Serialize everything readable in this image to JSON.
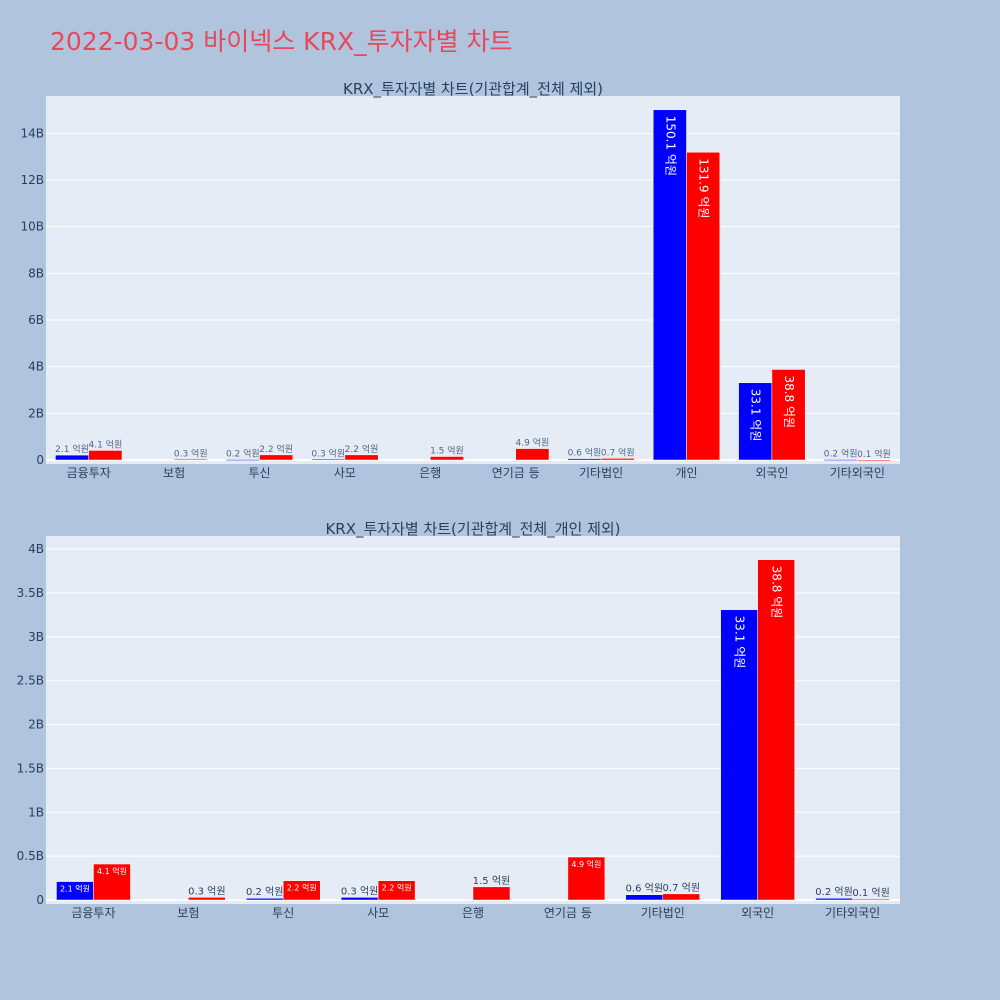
{
  "page": {
    "title": "2022-03-03 바이넥스 KRX_투자자별 차트"
  },
  "colors": {
    "buy": "#0000ff",
    "sell": "#ff0000",
    "plot_bg": "#e5ecf6",
    "page_bg": "#b0c4de",
    "title": "#e8495a"
  },
  "chart_data": [
    {
      "type": "bar",
      "title": "KRX_투자자별 차트(기관합계_전체 제외)",
      "categories": [
        "금융투자",
        "보험",
        "투신",
        "사모",
        "은행",
        "연기금 등",
        "기타법인",
        "개인",
        "외국인",
        "기타외국인"
      ],
      "series": [
        {
          "color": "#0000ff",
          "values": [
            210000000,
            0,
            20000000,
            30000000,
            0,
            0,
            60000000,
            15010000000,
            3310000000,
            20000000
          ],
          "labels": [
            "2.1 억원",
            "",
            "0.2 억원",
            "0.3 억원",
            "",
            "",
            "0.6 억원",
            "150.1 억원",
            "33.1 억원",
            "0.2 억원"
          ]
        },
        {
          "color": "#ff0000",
          "values": [
            410000000,
            30000000,
            220000000,
            220000000,
            150000000,
            490000000,
            70000000,
            13190000000,
            3880000000,
            10000000
          ],
          "labels": [
            "4.1 억원",
            "0.3 억원",
            "2.2 억원",
            "2.2 억원",
            "1.5 억원",
            "4.9 억원",
            "0.7 억원",
            "131.9 억원",
            "38.8 억원",
            "0.1 억원"
          ]
        }
      ],
      "ylim": [
        0,
        15600000000
      ],
      "yticks": [
        0,
        2000000000,
        4000000000,
        6000000000,
        8000000000,
        10000000000,
        12000000000,
        14000000000
      ],
      "yticklabels": [
        "0",
        "2B",
        "4B",
        "6B",
        "8B",
        "10B",
        "12B",
        "14B"
      ],
      "grid": true
    },
    {
      "type": "bar",
      "title": "KRX_투자자별 차트(기관합계_전체_개인 제외)",
      "categories": [
        "금융투자",
        "보험",
        "투신",
        "사모",
        "은행",
        "연기금 등",
        "기타법인",
        "외국인",
        "기타외국인"
      ],
      "series": [
        {
          "color": "#0000ff",
          "values": [
            210000000,
            0,
            20000000,
            30000000,
            0,
            0,
            60000000,
            3310000000,
            20000000
          ],
          "labels": [
            "2.1 억원",
            "",
            "0.2 억원",
            "0.3 억원",
            "",
            "",
            "0.6 억원",
            "33.1 억원",
            "0.2 억원"
          ]
        },
        {
          "color": "#ff0000",
          "values": [
            410000000,
            30000000,
            220000000,
            220000000,
            150000000,
            490000000,
            70000000,
            3880000000,
            10000000
          ],
          "labels": [
            "4.1 억원",
            "0.3 억원",
            "2.2 억원",
            "2.2 억원",
            "1.5 억원",
            "4.9 억원",
            "0.7 억원",
            "38.8 억원",
            "0.1 억원"
          ]
        }
      ],
      "ylim": [
        0,
        4150000000
      ],
      "yticks": [
        0,
        500000000,
        1000000000,
        1500000000,
        2000000000,
        2500000000,
        3000000000,
        3500000000,
        4000000000
      ],
      "yticklabels": [
        "0",
        "0.5B",
        "1B",
        "1.5B",
        "2B",
        "2.5B",
        "3B",
        "3.5B",
        "4B"
      ],
      "grid": true
    }
  ]
}
